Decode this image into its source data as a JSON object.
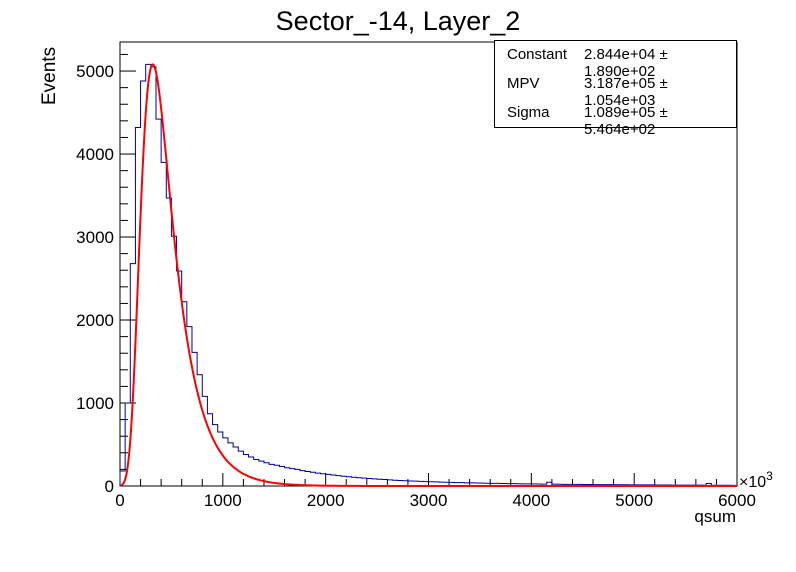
{
  "chart_data": {
    "type": "histogram",
    "title": "Sector_-14, Layer_2",
    "xlabel": "qsum",
    "ylabel": "Events",
    "x_multiplier_label": "×10",
    "x_multiplier_exponent": "3",
    "xlim": [
      0,
      6000
    ],
    "ylim": [
      0,
      5350
    ],
    "x_ticks": [
      0,
      1000,
      2000,
      3000,
      4000,
      5000,
      6000
    ],
    "y_ticks": [
      0,
      1000,
      2000,
      3000,
      4000,
      5000
    ],
    "bin_width": 50,
    "histogram_values": [
      180,
      1000,
      2680,
      4320,
      4880,
      5080,
      5050,
      4420,
      3900,
      3470,
      3010,
      2590,
      2220,
      1920,
      1610,
      1340,
      1080,
      870,
      740,
      650,
      580,
      520,
      470,
      420,
      380,
      350,
      320,
      300,
      280,
      260,
      250,
      235,
      220,
      210,
      200,
      185,
      175,
      165,
      155,
      148,
      140,
      132,
      125,
      118,
      112,
      106,
      100,
      95,
      90,
      86,
      82,
      78,
      74,
      70,
      67,
      64,
      61,
      58,
      55,
      53,
      51,
      49,
      47,
      45,
      43,
      41,
      40,
      38,
      37,
      36,
      34,
      33,
      32,
      31,
      30,
      29,
      28,
      27,
      26,
      25,
      25,
      24,
      23,
      45,
      22,
      21,
      20,
      20,
      19,
      19,
      18,
      18,
      17,
      17,
      16,
      16,
      15,
      15,
      15,
      14,
      14,
      13,
      13,
      13,
      12,
      12,
      12,
      11,
      11,
      11,
      10,
      10,
      10,
      10,
      30,
      9,
      9,
      9,
      9,
      8
    ],
    "fit": {
      "name": "Landau",
      "color": "#ff0000",
      "constant": 28440,
      "mpv": 318.7,
      "sigma": 108.9,
      "x_range": [
        0,
        6000
      ]
    },
    "stats": [
      {
        "name": "Constant",
        "value": "2.844e+04 ± 1.890e+02"
      },
      {
        "name": "MPV",
        "value": "3.187e+05 ± 1.054e+03"
      },
      {
        "name": "Sigma",
        "value": "1.089e+05 ± 5.464e+02"
      }
    ],
    "histogram_color": "#000099"
  }
}
